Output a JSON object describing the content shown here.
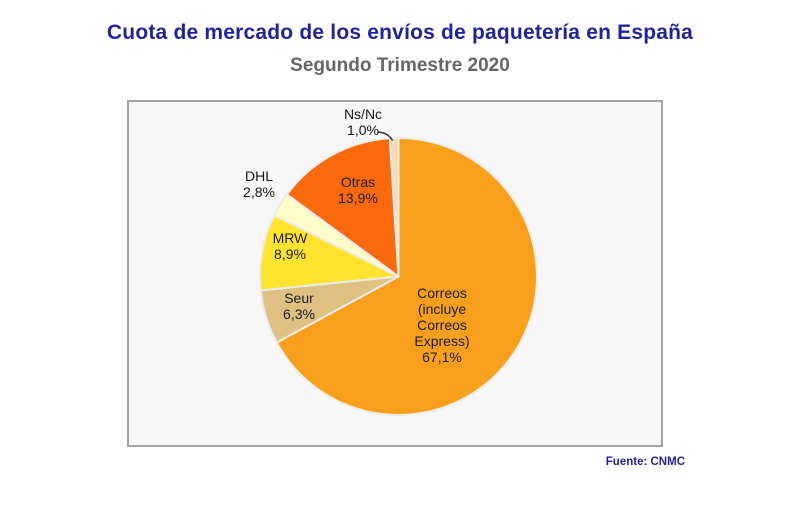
{
  "header": {
    "title": "Cuota de mercado de los envíos de paquetería en España",
    "subtitle": "Segundo Trimestre 2020"
  },
  "footer": {
    "source": "Fuente: CNMC"
  },
  "colors": {
    "title": "#22229B",
    "subtitle": "#666666",
    "source": "#22229B",
    "plot_background": "#F7F7F7",
    "plot_border": "#A3A3A3",
    "slice_separator": "#ECECEC",
    "label_text": "#1A1A1A"
  },
  "chart_data": {
    "type": "pie",
    "title": "Cuota de mercado de los envíos de paquetería en España",
    "subtitle": "Segundo Trimestre 2020",
    "source": "Fuente: CNMC",
    "start_angle_deg": 0,
    "direction": "clockwise",
    "total": 100,
    "legend": "none (labels on/near slices)",
    "slices": [
      {
        "id": "correos",
        "name": "Correos (incluye Correos Express)",
        "value": 67.1,
        "pct_label": "67,1%",
        "color": "#F8A01B",
        "label_position": "inside"
      },
      {
        "id": "seur",
        "name": "Seur",
        "value": 6.3,
        "pct_label": "6,3%",
        "color": "#DFC083",
        "label_position": "inside"
      },
      {
        "id": "mrw",
        "name": "MRW",
        "value": 8.9,
        "pct_label": "8,9%",
        "color": "#FFE42E",
        "label_position": "inside"
      },
      {
        "id": "dhl",
        "name": "DHL",
        "value": 2.8,
        "pct_label": "2,8%",
        "color": "#FEFEC8",
        "label_position": "outside"
      },
      {
        "id": "otras",
        "name": "Otras",
        "value": 13.9,
        "pct_label": "13,9%",
        "color": "#FA6A0C",
        "label_position": "inside"
      },
      {
        "id": "ns-nc",
        "name": "Ns/Nc",
        "value": 1.0,
        "pct_label": "1,0%",
        "color": "#F8D9B8",
        "label_position": "outside-with-leader-line"
      }
    ]
  }
}
